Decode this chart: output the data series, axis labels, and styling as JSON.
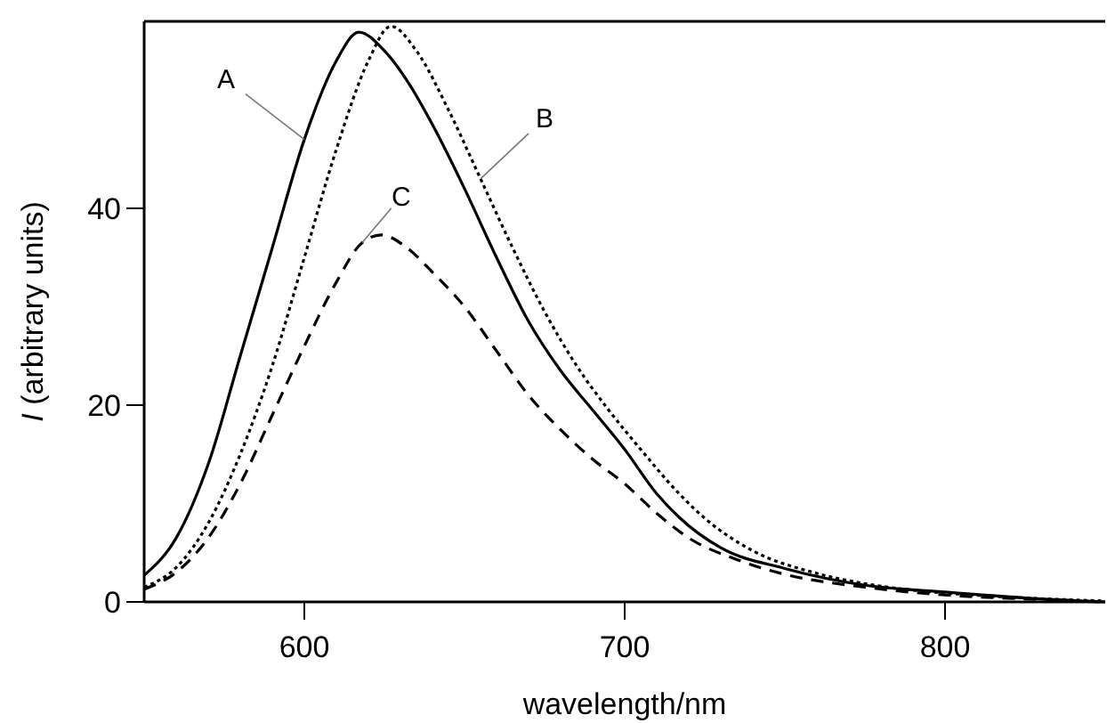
{
  "chart_data": {
    "type": "line",
    "xlabel": "wavelength/nm",
    "ylabel": "I (arbitrary units)",
    "xlim": [
      550,
      850
    ],
    "xticks": [
      600,
      700,
      800
    ],
    "ylim": [
      0,
      59
    ],
    "yticks": [
      0,
      20,
      40
    ],
    "grid": false,
    "marker": "none",
    "series": [
      {
        "color": "#000000",
        "line_style": "solid",
        "x": [
          550,
          560,
          570,
          580,
          590,
          600,
          610,
          617,
          625,
          633,
          640,
          650,
          660,
          670,
          680,
          690,
          700,
          710,
          717,
          730,
          750,
          775,
          800,
          825,
          850
        ],
        "values": [
          2.7,
          6.5,
          14,
          25,
          36,
          47,
          55,
          57.9,
          56,
          52.5,
          48.5,
          42,
          35,
          28.5,
          23.5,
          19.5,
          15.5,
          11,
          8.6,
          5.5,
          3.4,
          1.7,
          1,
          0.4,
          0
        ]
      },
      {
        "color": "#000000",
        "line_style": "dotted",
        "x": [
          550,
          560,
          570,
          580,
          590,
          600,
          610,
          620,
          627,
          635,
          645,
          655,
          665,
          675,
          685,
          695,
          705,
          717,
          725,
          740,
          760,
          780,
          800,
          825,
          850
        ],
        "values": [
          1.5,
          3.5,
          8,
          15,
          24,
          35,
          46,
          55,
          58.5,
          56,
          50,
          43,
          36,
          29.5,
          24,
          19.5,
          15.5,
          11,
          8.5,
          5.2,
          2.9,
          1.6,
          0.9,
          0.4,
          0.1
        ]
      },
      {
        "color": "#000000",
        "line_style": "dashed",
        "x": [
          550,
          560,
          570,
          580,
          590,
          600,
          610,
          618,
          624,
          632,
          640,
          650,
          660,
          670,
          680,
          690,
          700,
          710,
          720,
          735,
          750,
          775,
          800,
          825,
          850
        ],
        "values": [
          1.3,
          3,
          6.5,
          12,
          19,
          26,
          32.5,
          36.5,
          37.3,
          36,
          33.5,
          30,
          25.5,
          21,
          17.5,
          14.5,
          12,
          9,
          6.5,
          4.3,
          2.8,
          1.5,
          0.7,
          0.3,
          0
        ]
      }
    ],
    "annotations": [
      {
        "text": "A",
        "x": 600,
        "y": 47
      },
      {
        "text": "B",
        "x": 655,
        "y": 43
      },
      {
        "text": "C",
        "x": 618,
        "y": 36.5
      }
    ]
  }
}
